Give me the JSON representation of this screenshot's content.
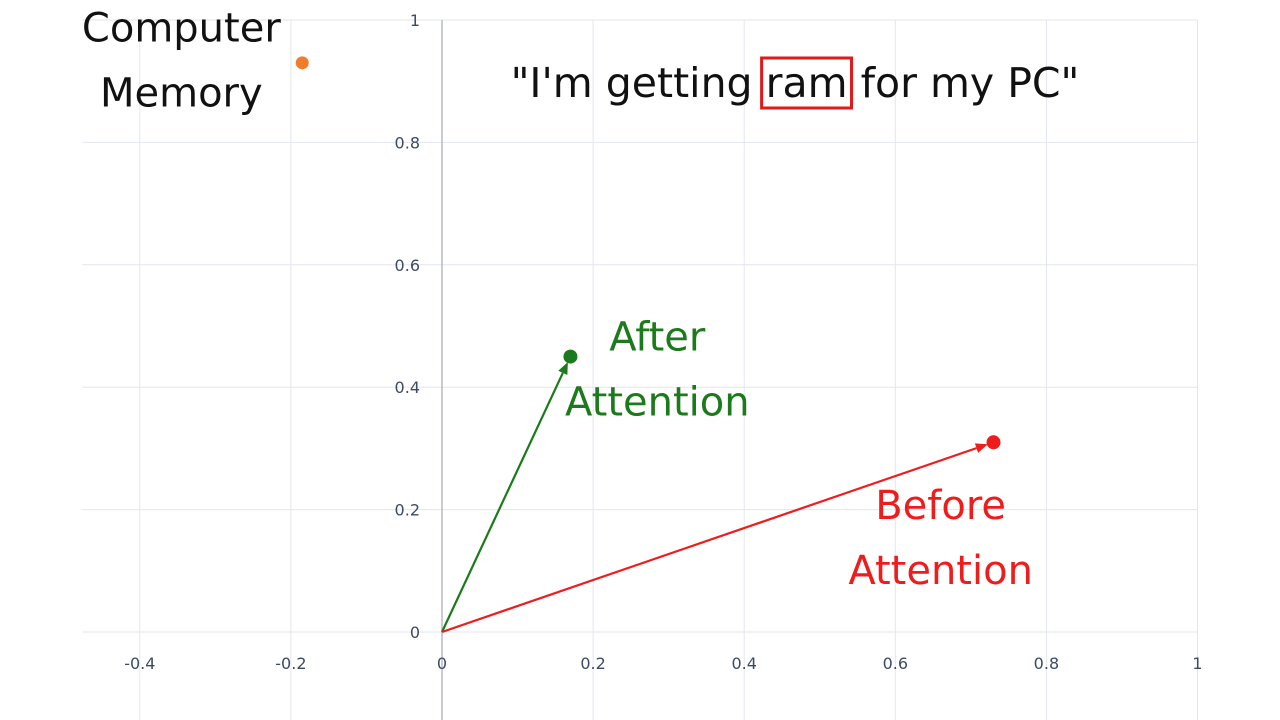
{
  "chart_data": {
    "type": "scatter",
    "title": "\"I'm getting ram for my PC\"",
    "title_parts": {
      "before": "\"I'm getting ",
      "highlight": "ram",
      "after": " for my PC\""
    },
    "highlight_color": "#e0191b",
    "xlim": [
      -0.5,
      1
    ],
    "ylim": [
      -0.15,
      1
    ],
    "x_ticks": [
      {
        "value": -0.4,
        "label": "-0.4"
      },
      {
        "value": -0.2,
        "label": "-0.2"
      },
      {
        "value": 0,
        "label": "0"
      },
      {
        "value": 0.2,
        "label": "0.2"
      },
      {
        "value": 0.4,
        "label": "0.4"
      },
      {
        "value": 0.6,
        "label": "0.6"
      },
      {
        "value": 0.8,
        "label": "0.8"
      },
      {
        "value": 1,
        "label": "1"
      }
    ],
    "y_ticks": [
      {
        "value": 0,
        "label": "0"
      },
      {
        "value": 0.2,
        "label": "0.2"
      },
      {
        "value": 0.4,
        "label": "0.4"
      },
      {
        "value": 0.6,
        "label": "0.6"
      },
      {
        "value": 0.8,
        "label": "0.8"
      },
      {
        "value": 1,
        "label": "1"
      }
    ],
    "grid": true,
    "vectors": [
      {
        "id": "after",
        "from": [
          0,
          0
        ],
        "to": [
          0.17,
          0.45
        ],
        "color": "#1b7a1b"
      },
      {
        "id": "before",
        "from": [
          0,
          0
        ],
        "to": [
          0.73,
          0.31
        ],
        "color": "#ee1c1c"
      }
    ],
    "points": [
      {
        "id": "computer-memory",
        "x": -0.185,
        "y": 0.93,
        "color": "#f07d2e"
      }
    ],
    "annotations": [
      {
        "id": "computer-memory-label",
        "lines": [
          "Computer",
          "Memory"
        ],
        "color": "#111111",
        "anchor_x": -0.345,
        "anchor_y": 0.965
      },
      {
        "id": "after-attention-label",
        "lines": [
          "After",
          "Attention"
        ],
        "color": "#1b7a1b",
        "anchor_x": 0.285,
        "anchor_y": 0.46
      },
      {
        "id": "before-attention-label",
        "lines": [
          "Before",
          "Attention"
        ],
        "color": "#ee1c1c",
        "anchor_x": 0.66,
        "anchor_y": 0.185
      }
    ]
  }
}
